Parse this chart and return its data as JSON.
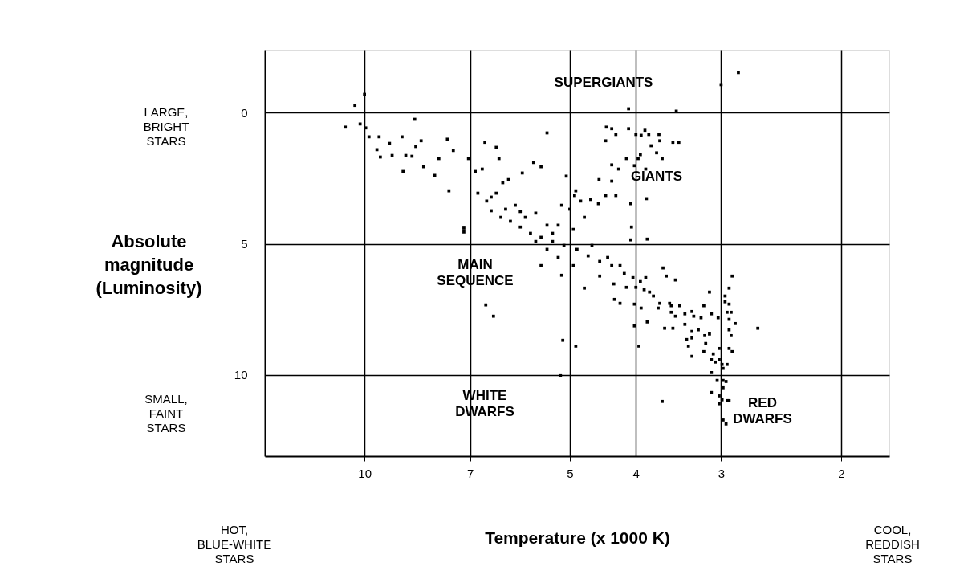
{
  "chart_data": {
    "type": "scatter",
    "xlabel": "Temperature (x 1000 K)",
    "ylabel": "Absolute\nmagnitude\n(Luminosity)",
    "log": "x",
    "xlim": [
      14,
      1.7
    ],
    "xticks": [
      10,
      7,
      5,
      4,
      3,
      2
    ],
    "ylim": [
      13.1,
      -2.4
    ],
    "yticks": [
      0,
      5,
      10
    ],
    "grid": true,
    "marker": "square",
    "color": "#000000",
    "x": [
      10.33,
      10,
      10.67,
      10.15,
      9.96,
      8.44,
      9.85,
      9.52,
      9.19,
      8.81,
      8.26,
      9.59,
      9.48,
      9.11,
      8.7,
      8.52,
      8.78,
      8.41,
      7.56,
      7.41,
      7.78,
      8.19,
      7.89,
      7.52,
      7.04,
      6.66,
      6.41,
      6.88,
      6.72,
      6.35,
      5.4,
      5.65,
      5.51,
      5.87,
      7.15,
      7.15,
      6.27,
      6.15,
      6.82,
      6.62,
      6.52,
      6.31,
      6.11,
      5.91,
      5.71,
      5.51,
      5.3,
      5.1,
      6.41,
      6.01,
      5.61,
      5.2,
      5.0,
      4.82,
      4.76,
      4.94,
      5.91,
      4.88,
      4.7,
      4.52,
      4.34,
      4.16,
      4.04,
      4.64,
      4.4,
      4.22,
      3.94,
      3.87,
      5.4,
      5.2,
      4.94,
      6.21,
      5.81,
      5.4,
      6.52,
      5.61,
      5.3,
      4.1,
      3.49,
      3.0,
      2.83,
      4.42,
      4.34,
      4.28,
      4.1,
      4.0,
      3.88,
      3.83,
      3.7,
      3.69,
      3.53,
      3.46,
      4.43,
      3.93,
      3.8,
      4.13,
      3.94,
      3.73,
      3.66,
      4.34,
      4.24,
      4.02,
      3.97,
      4.53,
      4.34,
      3.87,
      3.86,
      4.07,
      4.43,
      4.28,
      4.54,
      4.66,
      4.06,
      4.07,
      3.85,
      5.06,
      4.9,
      4.92,
      5.14,
      3.65,
      3.61,
      3.5,
      5.51,
      5.14,
      4.76,
      4.3,
      4.22,
      4.02,
      3.93,
      4.52,
      4.31,
      4.13,
      4.0,
      3.89,
      3.82,
      3.77,
      3.69,
      3.71,
      3.57,
      3.55,
      3.45,
      3.55,
      3.5,
      3.39,
      3.31,
      3.29,
      3.21,
      3.12,
      3.18,
      3.1,
      3.03,
      3.63,
      3.53,
      3.39,
      3.31,
      3.24,
      3.37,
      3.31,
      3.17,
      3.12,
      3.35,
      3.31,
      3.16,
      3.18,
      3.08,
      3.02,
      3.1,
      3.06,
      3.02,
      2.99,
      2.98,
      3.1,
      2.94,
      2.89,
      2.92,
      2.96,
      2.96,
      2.92,
      2.94,
      2.9,
      2.92,
      2.86,
      2.92,
      2.9,
      2.92,
      2.89,
      2.65,
      3.04,
      2.98,
      2.95,
      2.98,
      3.1,
      3.02,
      3.02,
      2.99,
      2.94,
      2.92,
      2.98,
      2.95,
      3.66,
      5.12,
      4.9,
      3.96,
      4.02,
      3.85,
      5.16,
      6.64,
      6.47
    ],
    "values": [
      -0.28,
      -0.7,
      0.55,
      0.43,
      0.58,
      0.25,
      0.92,
      0.92,
      1.17,
      0.92,
      1.07,
      1.41,
      1.69,
      1.63,
      1.63,
      1.66,
      2.24,
      1.29,
      1.01,
      1.44,
      1.75,
      2.06,
      2.39,
      2.98,
      1.75,
      1.13,
      1.32,
      2.24,
      2.15,
      1.75,
      0.77,
      1.9,
      2.06,
      2.3,
      4.4,
      4.55,
      2.67,
      2.55,
      3.07,
      3.37,
      3.74,
      3.99,
      4.14,
      4.36,
      4.6,
      4.75,
      4.91,
      5.06,
      3.07,
      3.53,
      3.83,
      4.29,
      3.68,
      3.37,
      3.99,
      4.45,
      3.77,
      5.21,
      5.46,
      5.67,
      5.83,
      6.13,
      6.29,
      5.06,
      5.52,
      5.83,
      6.44,
      6.29,
      5.21,
      5.52,
      5.83,
      3.68,
      3.99,
      4.29,
      3.22,
      4.91,
      4.6,
      -0.15,
      -0.06,
      -1.07,
      -1.53,
      0.55,
      0.61,
      0.83,
      0.61,
      0.83,
      0.67,
      0.83,
      0.83,
      1.07,
      1.13,
      1.13,
      1.07,
      0.86,
      1.26,
      1.75,
      1.6,
      1.53,
      1.75,
      1.99,
      2.15,
      2.02,
      1.75,
      2.55,
      2.61,
      2.15,
      3.28,
      3.47,
      3.16,
      3.16,
      3.47,
      3.31,
      4.36,
      4.85,
      4.82,
      2.42,
      2.98,
      3.16,
      3.53,
      5.92,
      6.23,
      6.38,
      5.83,
      6.2,
      6.69,
      7.12,
      7.27,
      7.3,
      7.45,
      6.23,
      6.53,
      6.66,
      6.66,
      6.75,
      6.84,
      6.99,
      7.27,
      7.45,
      7.27,
      7.36,
      7.36,
      7.61,
      7.76,
      7.67,
      7.58,
      7.76,
      7.82,
      6.84,
      7.36,
      7.67,
      7.82,
      8.22,
      8.22,
      8.07,
      8.34,
      8.28,
      8.65,
      8.59,
      8.5,
      8.44,
      8.9,
      9.29,
      8.8,
      9.11,
      9.2,
      8.99,
      9.42,
      9.51,
      9.42,
      9.6,
      9.75,
      9.91,
      9.6,
      6.23,
      6.69,
      6.99,
      7.21,
      7.3,
      7.61,
      7.61,
      7.88,
      8.04,
      8.28,
      8.5,
      8.99,
      9.11,
      8.22,
      10.21,
      10.21,
      10.25,
      10.49,
      10.67,
      10.8,
      11.1,
      10.95,
      10.98,
      10.98,
      11.72,
      11.87,
      11.01,
      8.68,
      8.9,
      8.9,
      8.13,
      7.98,
      10.03,
      7.33,
      7.76
    ],
    "annotations": [
      "SUPERGIANTS",
      "GIANTS",
      "MAIN\nSEQUENCE",
      "WHITE\nDWARFS",
      "RED\nDWARFS",
      "LARGE,\nBRIGHT\nSTARS",
      "SMALL,\nFAINT\nSTARS",
      "HOT,\nBLUE-WHITE\nSTARS",
      "COOL,\nREDDISH\nSTARS"
    ]
  }
}
